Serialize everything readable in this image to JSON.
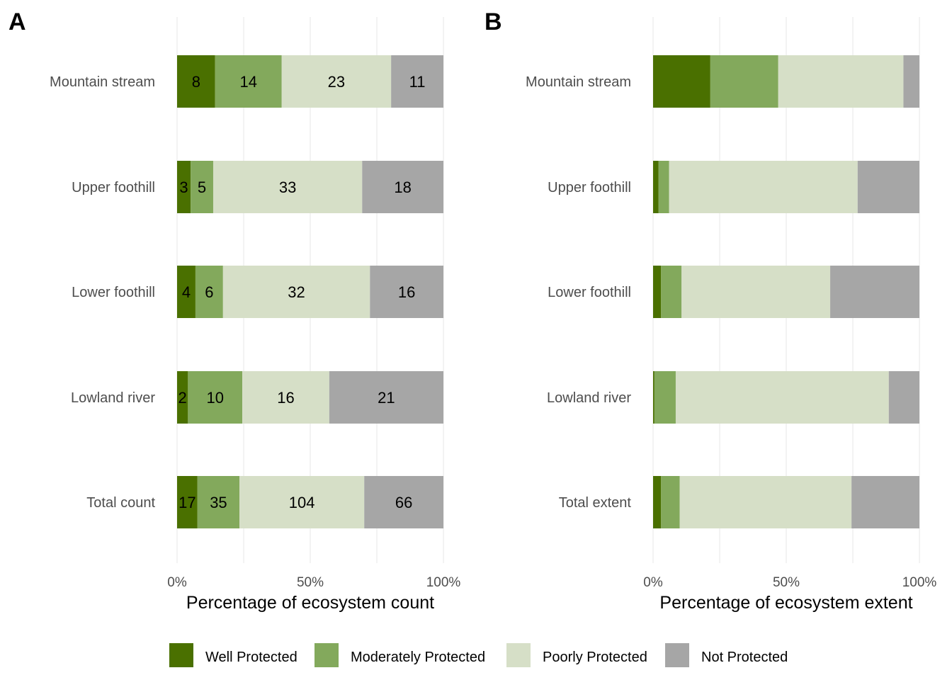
{
  "chart_data": [
    {
      "type": "bar",
      "orientation": "horizontal",
      "stacked": "percent",
      "panel": "A",
      "categories": [
        "Mountain stream",
        "Upper foothill",
        "Lower foothill",
        "Lowland river",
        "Total count"
      ],
      "series": [
        {
          "name": "Well Protected",
          "values": [
            8,
            3,
            4,
            2,
            17
          ],
          "color": "#4a7000"
        },
        {
          "name": "Moderately Protected",
          "values": [
            14,
            5,
            6,
            10,
            35
          ],
          "color": "#83a95c"
        },
        {
          "name": "Poorly Protected",
          "values": [
            23,
            33,
            32,
            16,
            104
          ],
          "color": "#d6dfc7"
        },
        {
          "name": "Not Protected",
          "values": [
            11,
            18,
            16,
            21,
            66
          ],
          "color": "#a6a6a6"
        }
      ],
      "show_labels": true,
      "xlabel": "Percentage of ecosystem count",
      "xticks": [
        "0%",
        "50%",
        "100%"
      ],
      "xlim": [
        0,
        100
      ],
      "grid": true
    },
    {
      "type": "bar",
      "orientation": "horizontal",
      "stacked": "percent",
      "panel": "B",
      "categories": [
        "Mountain stream",
        "Upper foothill",
        "Lower foothill",
        "Lowland river",
        "Total extent"
      ],
      "series": [
        {
          "name": "Well Protected",
          "values": [
            21.5,
            2.0,
            3.0,
            0.5,
            3.0
          ],
          "color": "#4a7000"
        },
        {
          "name": "Moderately Protected",
          "values": [
            25.5,
            4.0,
            7.7,
            8.0,
            7.0
          ],
          "color": "#83a95c"
        },
        {
          "name": "Poorly Protected",
          "values": [
            47.0,
            70.8,
            55.8,
            80.0,
            64.5
          ],
          "color": "#d6dfc7"
        },
        {
          "name": "Not Protected",
          "values": [
            6.0,
            23.2,
            33.5,
            11.5,
            25.5
          ],
          "color": "#a6a6a6"
        }
      ],
      "show_labels": false,
      "xlabel": "Percentage of ecosystem extent",
      "xticks": [
        "0%",
        "50%",
        "100%"
      ],
      "xlim": [
        0,
        100
      ],
      "grid": true
    }
  ],
  "legend": {
    "position": "bottom",
    "items": [
      {
        "name": "Well Protected",
        "color": "#4a7000"
      },
      {
        "name": "Moderately Protected",
        "color": "#83a95c"
      },
      {
        "name": "Poorly Protected",
        "color": "#d6dfc7"
      },
      {
        "name": "Not Protected",
        "color": "#a6a6a6"
      }
    ]
  }
}
